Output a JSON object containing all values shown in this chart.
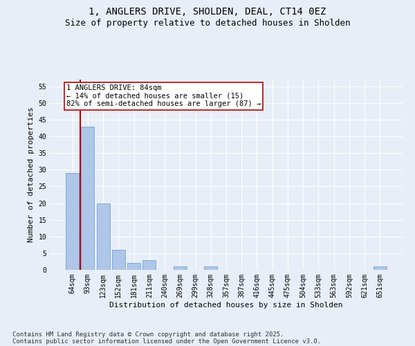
{
  "title": "1, ANGLERS DRIVE, SHOLDEN, DEAL, CT14 0EZ",
  "subtitle": "Size of property relative to detached houses in Sholden",
  "xlabel": "Distribution of detached houses by size in Sholden",
  "ylabel": "Number of detached properties",
  "categories": [
    "64sqm",
    "93sqm",
    "123sqm",
    "152sqm",
    "181sqm",
    "211sqm",
    "240sqm",
    "269sqm",
    "299sqm",
    "328sqm",
    "357sqm",
    "387sqm",
    "416sqm",
    "445sqm",
    "475sqm",
    "504sqm",
    "533sqm",
    "563sqm",
    "592sqm",
    "621sqm",
    "651sqm"
  ],
  "values": [
    29,
    43,
    20,
    6,
    2,
    3,
    0,
    1,
    0,
    1,
    0,
    0,
    0,
    0,
    0,
    0,
    0,
    0,
    0,
    0,
    1
  ],
  "bar_color": "#aec6e8",
  "bar_edge_color": "#5b9bd5",
  "highlight_color": "#c00000",
  "annotation_text": "1 ANGLERS DRIVE: 84sqm\n← 14% of detached houses are smaller (15)\n82% of semi-detached houses are larger (87) →",
  "annotation_box_color": "#c00000",
  "ylim": [
    0,
    57
  ],
  "yticks": [
    0,
    5,
    10,
    15,
    20,
    25,
    30,
    35,
    40,
    45,
    50,
    55
  ],
  "footer_line1": "Contains HM Land Registry data © Crown copyright and database right 2025.",
  "footer_line2": "Contains public sector information licensed under the Open Government Licence v3.0.",
  "background_color": "#e8eef7",
  "plot_bg_color": "#e8eef7",
  "grid_color": "#ffffff",
  "title_fontsize": 10,
  "subtitle_fontsize": 9,
  "axis_label_fontsize": 8,
  "tick_fontsize": 7,
  "annotation_fontsize": 7.5,
  "footer_fontsize": 6.5
}
